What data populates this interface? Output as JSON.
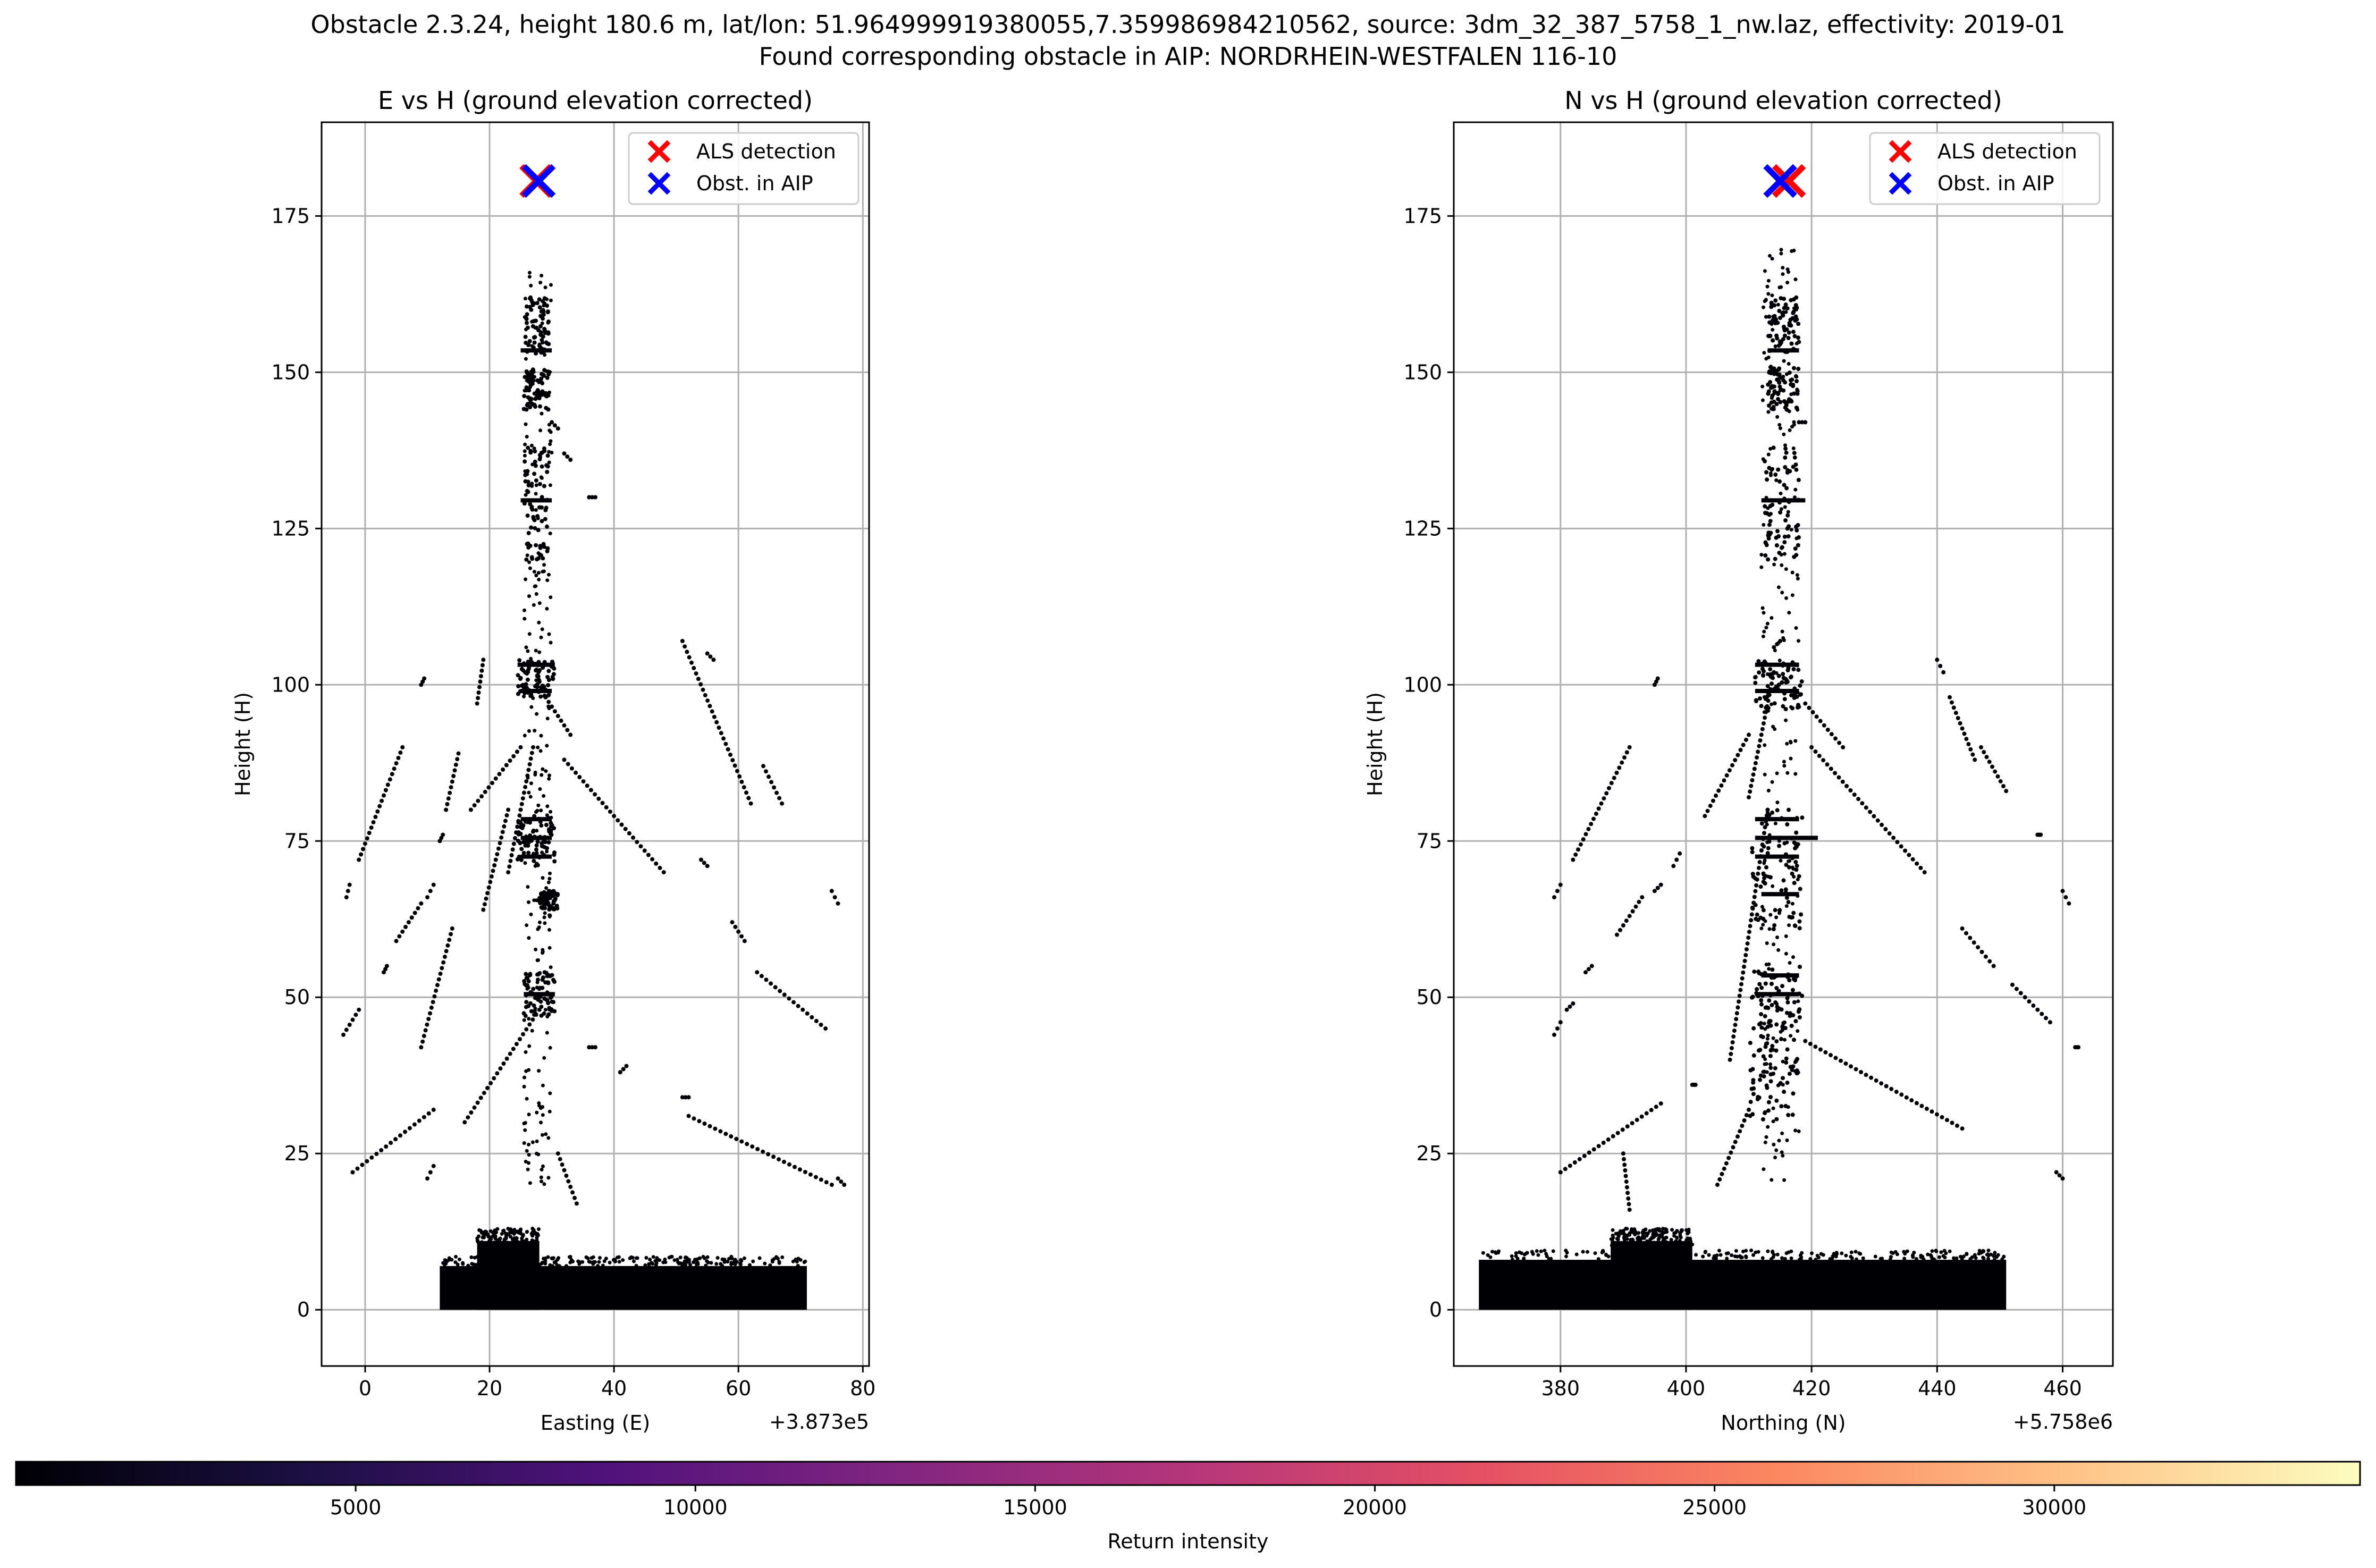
{
  "figure": {
    "title_line1": "Obstacle 2.3.24, height 180.6 m, lat/lon: 51.964999919380055,7.359986984210562, source: 3dm_32_387_5758_1_nw.laz, effectivity: 2019-01",
    "title_line2": "Found corresponding obstacle in AIP: NORDRHEIN-WESTFALEN 116-10"
  },
  "colorbar": {
    "label": "Return intensity",
    "range": [
      0,
      34500
    ],
    "ticks": [
      5000,
      10000,
      15000,
      20000,
      25000,
      30000
    ],
    "tick_labels": [
      "5000",
      "10000",
      "15000",
      "20000",
      "25000",
      "30000"
    ],
    "colormap": "magma"
  },
  "chart_data": [
    {
      "type": "scatter",
      "title": "E vs H (ground elevation corrected)",
      "xlabel": "Easting (E)",
      "ylabel": "Height (H)",
      "x_offset_label": "+3.873e5",
      "xlim": [
        -7,
        81
      ],
      "ylim": [
        -9,
        190
      ],
      "xticks": [
        0,
        20,
        40,
        60,
        80
      ],
      "xtick_labels": [
        "0",
        "20",
        "40",
        "60",
        "80"
      ],
      "yticks": [
        0,
        25,
        50,
        75,
        100,
        125,
        150,
        175
      ],
      "ytick_labels": [
        "0",
        "25",
        "50",
        "75",
        "100",
        "125",
        "150",
        "175"
      ],
      "grid": true,
      "legend_position": "upper right",
      "legend": [
        {
          "name": "ALS detection",
          "color": "#ff0000",
          "marker": "x"
        },
        {
          "name": "Obst. in AIP",
          "color": "#0000ff",
          "marker": "x"
        }
      ],
      "markers": {
        "als_detection": {
          "x": 27.5,
          "y": 180.6
        },
        "obst_in_aip": {
          "x": 27.9,
          "y": 180.6
        }
      },
      "point_cloud": {
        "color": "#000004",
        "ground_band": {
          "x": [
            12,
            71
          ],
          "y": [
            0,
            7
          ]
        },
        "ground_hump": {
          "x": [
            18,
            28
          ],
          "y": [
            0,
            13
          ]
        },
        "mast": {
          "x": [
            25.5,
            30
          ],
          "y": [
            20,
            170
          ]
        },
        "mast_clusters": [
          {
            "x": [
              25.5,
              29.5
            ],
            "y": [
              153,
              162
            ]
          },
          {
            "x": [
              25.5,
              29.5
            ],
            "y": [
              144,
              151
            ]
          },
          {
            "x": [
              25.5,
              29.5
            ],
            "y": [
              120,
              138
            ]
          },
          {
            "x": [
              24.5,
              30.5
            ],
            "y": [
              98,
              104
            ]
          },
          {
            "x": [
              24.5,
              30.5
            ],
            "y": [
              71,
              79
            ]
          },
          {
            "x": [
              28,
              31
            ],
            "y": [
              64,
              67
            ]
          },
          {
            "x": [
              25.5,
              30.5
            ],
            "y": [
              47,
              54
            ]
          }
        ],
        "mast_bars": [
          {
            "x": [
              25,
              30
            ],
            "y": 153.5
          },
          {
            "x": [
              25,
              30
            ],
            "y": 129.5
          },
          {
            "x": [
              24.5,
              30.5
            ],
            "y": 103.2
          },
          {
            "x": [
              25,
              30
            ],
            "y": 99
          },
          {
            "x": [
              25,
              30
            ],
            "y": 78.5
          },
          {
            "x": [
              25,
              30
            ],
            "y": 75.5
          },
          {
            "x": [
              25,
              30
            ],
            "y": 72.5
          },
          {
            "x": [
              28,
              31
            ],
            "y": 66.5
          },
          {
            "x": [
              25.5,
              30.5
            ],
            "y": 50.5
          }
        ],
        "guy_wires": [
          {
            "from": [
              -2,
              22
            ],
            "to": [
              11,
              32
            ]
          },
          {
            "from": [
              -3.5,
              44
            ],
            "to": [
              -1,
              48
            ]
          },
          {
            "from": [
              -3,
              66
            ],
            "to": [
              -2.5,
              68
            ]
          },
          {
            "from": [
              -1,
              72
            ],
            "to": [
              6,
              90
            ]
          },
          {
            "from": [
              3,
              54
            ],
            "to": [
              3.5,
              55
            ]
          },
          {
            "from": [
              5,
              59
            ],
            "to": [
              9,
              65
            ]
          },
          {
            "from": [
              9,
              42
            ],
            "to": [
              14,
              61
            ]
          },
          {
            "from": [
              10,
              66
            ],
            "to": [
              11,
              68
            ]
          },
          {
            "from": [
              10,
              21
            ],
            "to": [
              11,
              23
            ]
          },
          {
            "from": [
              9,
              100
            ],
            "to": [
              9.5,
              101
            ]
          },
          {
            "from": [
              12,
              75
            ],
            "to": [
              12.5,
              76
            ]
          },
          {
            "from": [
              13,
              80
            ],
            "to": [
              15,
              89
            ]
          },
          {
            "from": [
              16,
              30
            ],
            "to": [
              28,
              48
            ]
          },
          {
            "from": [
              19,
              64
            ],
            "to": [
              23,
              80
            ]
          },
          {
            "from": [
              17,
              80
            ],
            "to": [
              25,
              90
            ]
          },
          {
            "from": [
              18,
              97
            ],
            "to": [
              19,
              104
            ]
          },
          {
            "from": [
              23,
              70
            ],
            "to": [
              27,
              90
            ]
          },
          {
            "from": [
              29,
              98
            ],
            "to": [
              33,
              92
            ]
          },
          {
            "from": [
              32,
              88
            ],
            "to": [
              48,
              70
            ]
          },
          {
            "from": [
              41,
              38
            ],
            "to": [
              42,
              39
            ]
          },
          {
            "from": [
              30,
              142
            ],
            "to": [
              31,
              141
            ]
          },
          {
            "from": [
              32,
              137
            ],
            "to": [
              33,
              136
            ]
          },
          {
            "from": [
              36,
              130
            ],
            "to": [
              37,
              130
            ]
          },
          {
            "from": [
              31,
              25
            ],
            "to": [
              34,
              17
            ]
          },
          {
            "from": [
              36,
              42
            ],
            "to": [
              37,
              42
            ]
          },
          {
            "from": [
              51,
              107
            ],
            "to": [
              62,
              81
            ]
          },
          {
            "from": [
              52,
              31
            ],
            "to": [
              75,
              20
            ]
          },
          {
            "from": [
              51,
              34
            ],
            "to": [
              52,
              34
            ]
          },
          {
            "from": [
              55,
              105
            ],
            "to": [
              56,
              104
            ]
          },
          {
            "from": [
              54,
              72
            ],
            "to": [
              55,
              71
            ]
          },
          {
            "from": [
              59,
              62
            ],
            "to": [
              61,
              59
            ]
          },
          {
            "from": [
              64,
              87
            ],
            "to": [
              67,
              81
            ]
          },
          {
            "from": [
              63,
              54
            ],
            "to": [
              74,
              45
            ]
          },
          {
            "from": [
              75,
              67
            ],
            "to": [
              76,
              65
            ]
          },
          {
            "from": [
              76,
              21
            ],
            "to": [
              77,
              20
            ]
          }
        ]
      }
    },
    {
      "type": "scatter",
      "title": "N vs H (ground elevation corrected)",
      "xlabel": "Northing (N)",
      "ylabel": "Height (H)",
      "x_offset_label": "+5.758e6",
      "xlim": [
        363,
        468
      ],
      "ylim": [
        -9,
        190
      ],
      "xticks": [
        380,
        400,
        420,
        440,
        460
      ],
      "xtick_labels": [
        "380",
        "400",
        "420",
        "440",
        "460"
      ],
      "yticks": [
        0,
        25,
        50,
        75,
        100,
        125,
        150,
        175
      ],
      "ytick_labels": [
        "0",
        "25",
        "50",
        "75",
        "100",
        "125",
        "150",
        "175"
      ],
      "grid": true,
      "legend_position": "upper right",
      "legend": [
        {
          "name": "ALS detection",
          "color": "#ff0000",
          "marker": "x"
        },
        {
          "name": "Obst. in AIP",
          "color": "#0000ff",
          "marker": "x"
        }
      ],
      "markers": {
        "als_detection": {
          "x": 416.4,
          "y": 180.6
        },
        "obst_in_aip": {
          "x": 415.0,
          "y": 180.6
        }
      },
      "point_cloud": {
        "color": "#000004",
        "ground_band": {
          "x": [
            367,
            451
          ],
          "y": [
            0,
            8
          ]
        },
        "ground_hump": {
          "x": [
            388,
            401
          ],
          "y": [
            0,
            13
          ]
        },
        "mast": {
          "x": [
            412,
            418
          ],
          "y": [
            20,
            170
          ]
        },
        "mast_clusters": [
          {
            "x": [
              413,
              418
            ],
            "y": [
              153,
              162
            ]
          },
          {
            "x": [
              413,
              418
            ],
            "y": [
              144,
              151
            ]
          },
          {
            "x": [
              412.5,
              418
            ],
            "y": [
              120,
              138
            ]
          },
          {
            "x": [
              411,
              418.5
            ],
            "y": [
              96,
              104
            ]
          },
          {
            "x": [
              410.5,
              418.5
            ],
            "y": [
              60,
              80
            ]
          },
          {
            "x": [
              410.5,
              418.5
            ],
            "y": [
              45,
              55
            ]
          },
          {
            "x": [
              410,
              418
            ],
            "y": [
              30,
              44
            ]
          }
        ],
        "mast_bars": [
          {
            "x": [
              413,
              418
            ],
            "y": 153.5
          },
          {
            "x": [
              412,
              419
            ],
            "y": 129.5
          },
          {
            "x": [
              411,
              418
            ],
            "y": 103.2
          },
          {
            "x": [
              411,
              418
            ],
            "y": 99
          },
          {
            "x": [
              411,
              418
            ],
            "y": 78.5
          },
          {
            "x": [
              411,
              421
            ],
            "y": 75.5
          },
          {
            "x": [
              411,
              418
            ],
            "y": 72.5
          },
          {
            "x": [
              412,
              418
            ],
            "y": 66.5
          },
          {
            "x": [
              412,
              418
            ],
            "y": 53.5
          },
          {
            "x": [
              411,
              418
            ],
            "y": 50.5
          }
        ],
        "guy_wires": [
          {
            "from": [
              380,
              22
            ],
            "to": [
              396,
              33
            ]
          },
          {
            "from": [
              379,
              44
            ],
            "to": [
              380,
              46
            ]
          },
          {
            "from": [
              379,
              66
            ],
            "to": [
              380,
              68
            ]
          },
          {
            "from": [
              382,
              72
            ],
            "to": [
              391,
              90
            ]
          },
          {
            "from": [
              381,
              48
            ],
            "to": [
              382,
              49
            ]
          },
          {
            "from": [
              384,
              54
            ],
            "to": [
              385,
              55
            ]
          },
          {
            "from": [
              389,
              60
            ],
            "to": [
              393,
              66
            ]
          },
          {
            "from": [
              395,
              67
            ],
            "to": [
              396,
              68
            ]
          },
          {
            "from": [
              390,
              25
            ],
            "to": [
              391,
              16
            ]
          },
          {
            "from": [
              395,
              100
            ],
            "to": [
              395.5,
              101
            ]
          },
          {
            "from": [
              398,
              71
            ],
            "to": [
              399,
              73
            ]
          },
          {
            "from": [
              401,
              36
            ],
            "to": [
              401.5,
              36
            ]
          },
          {
            "from": [
              403,
              79
            ],
            "to": [
              410,
              92
            ]
          },
          {
            "from": [
              405,
              20
            ],
            "to": [
              410,
              32
            ]
          },
          {
            "from": [
              407,
              40
            ],
            "to": [
              413,
              80
            ]
          },
          {
            "from": [
              410,
              82
            ],
            "to": [
              414,
              102
            ]
          },
          {
            "from": [
              414,
              106
            ],
            "to": [
              415,
              107
            ]
          },
          {
            "from": [
              419,
              97
            ],
            "to": [
              425,
              90
            ]
          },
          {
            "from": [
              420,
              90
            ],
            "to": [
              438,
              70
            ]
          },
          {
            "from": [
              419,
              43
            ],
            "to": [
              444,
              29
            ]
          },
          {
            "from": [
              418,
              142
            ],
            "to": [
              419,
              142
            ]
          },
          {
            "from": [
              440,
              104
            ],
            "to": [
              441,
              102
            ]
          },
          {
            "from": [
              442,
              98
            ],
            "to": [
              446,
              88
            ]
          },
          {
            "from": [
              447,
              90
            ],
            "to": [
              451,
              83
            ]
          },
          {
            "from": [
              444,
              61
            ],
            "to": [
              449,
              55
            ]
          },
          {
            "from": [
              452,
              52
            ],
            "to": [
              458,
              46
            ]
          },
          {
            "from": [
              456,
              76
            ],
            "to": [
              456.5,
              76
            ]
          },
          {
            "from": [
              460,
              67
            ],
            "to": [
              461,
              65
            ]
          },
          {
            "from": [
              459,
              22
            ],
            "to": [
              460,
              21
            ]
          },
          {
            "from": [
              462,
              42
            ],
            "to": [
              462.5,
              42
            ]
          }
        ]
      }
    }
  ]
}
